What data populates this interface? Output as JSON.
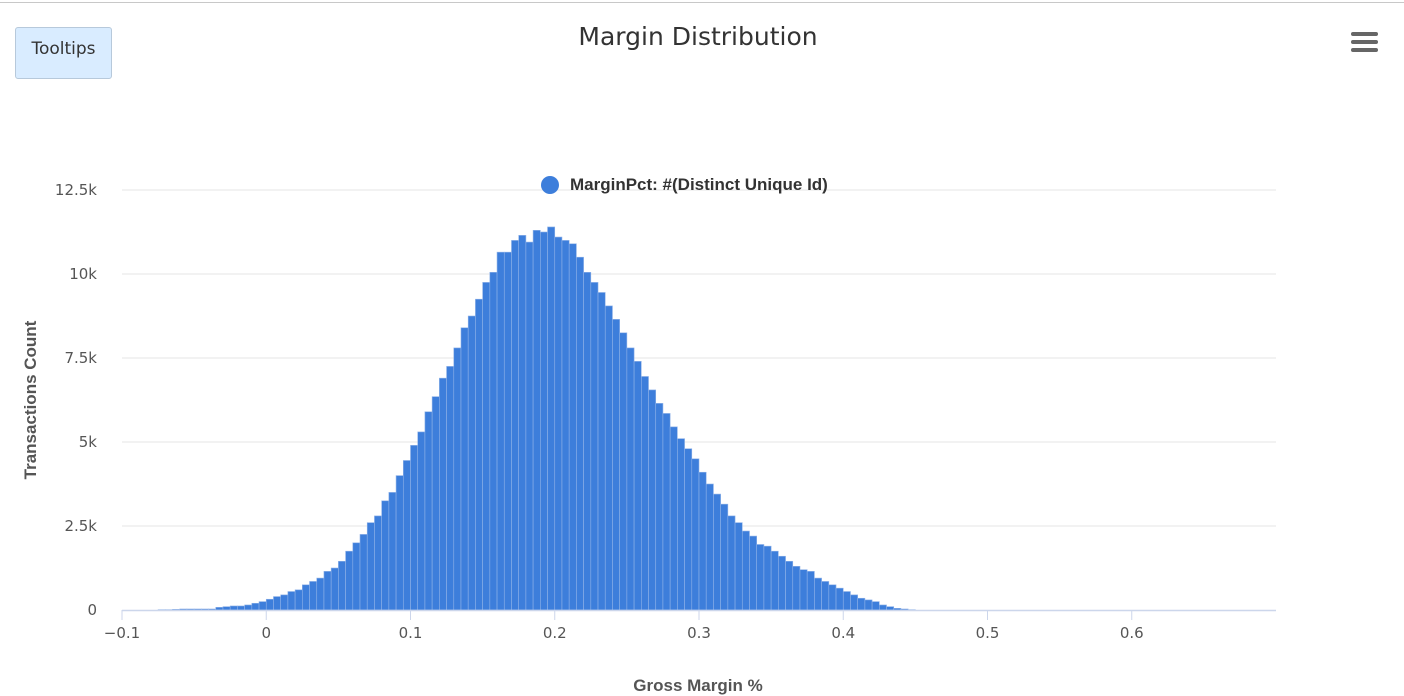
{
  "toolbar": {
    "tooltips_label": "Tooltips",
    "menu_icon": "hamburger-menu-icon"
  },
  "colors": {
    "bar": "#3d7edb",
    "grid": "#e6e6e6",
    "axis": "#ccd6eb"
  },
  "chart_data": {
    "type": "bar",
    "title": "Margin Distribution",
    "xlabel": "Gross Margin %",
    "ylabel": "Transactions Count",
    "xlim": [
      -0.1,
      0.7
    ],
    "ylim": [
      0,
      12500
    ],
    "x_ticks": [
      "−0.1",
      "0",
      "0.1",
      "0.2",
      "0.3",
      "0.4",
      "0.5",
      "0.6"
    ],
    "x_tick_values": [
      -0.1,
      0,
      0.1,
      0.2,
      0.3,
      0.4,
      0.5,
      0.6
    ],
    "y_ticks": [
      "0",
      "2.5k",
      "5k",
      "7.5k",
      "10k",
      "12.5k"
    ],
    "y_tick_values": [
      0,
      2500,
      5000,
      7500,
      10000,
      12500
    ],
    "grid": true,
    "legend": "top-center",
    "bin_width": 0.005,
    "bin_start": -0.075,
    "series": [
      {
        "name": "MarginPct: #(Distinct Unique Id)",
        "values": [
          10,
          10,
          20,
          30,
          30,
          30,
          30,
          30,
          80,
          100,
          120,
          120,
          150,
          200,
          250,
          320,
          400,
          450,
          550,
          600,
          750,
          850,
          950,
          1150,
          1250,
          1450,
          1750,
          2000,
          2250,
          2600,
          2800,
          3250,
          3500,
          4000,
          4450,
          4900,
          5300,
          5900,
          6350,
          6900,
          7250,
          7800,
          8400,
          8750,
          9250,
          9750,
          10050,
          10650,
          10650,
          11000,
          11150,
          10950,
          11300,
          11250,
          11400,
          11100,
          11000,
          10900,
          10500,
          10050,
          9750,
          9450,
          9050,
          8650,
          8250,
          7800,
          7400,
          6950,
          6550,
          6150,
          5850,
          5450,
          5100,
          4800,
          4500,
          4100,
          3750,
          3450,
          3150,
          2800,
          2600,
          2350,
          2200,
          1950,
          1900,
          1750,
          1600,
          1450,
          1300,
          1200,
          1150,
          950,
          850,
          750,
          650,
          550,
          450,
          350,
          300,
          250,
          150,
          100,
          50,
          30,
          10
        ]
      }
    ]
  }
}
